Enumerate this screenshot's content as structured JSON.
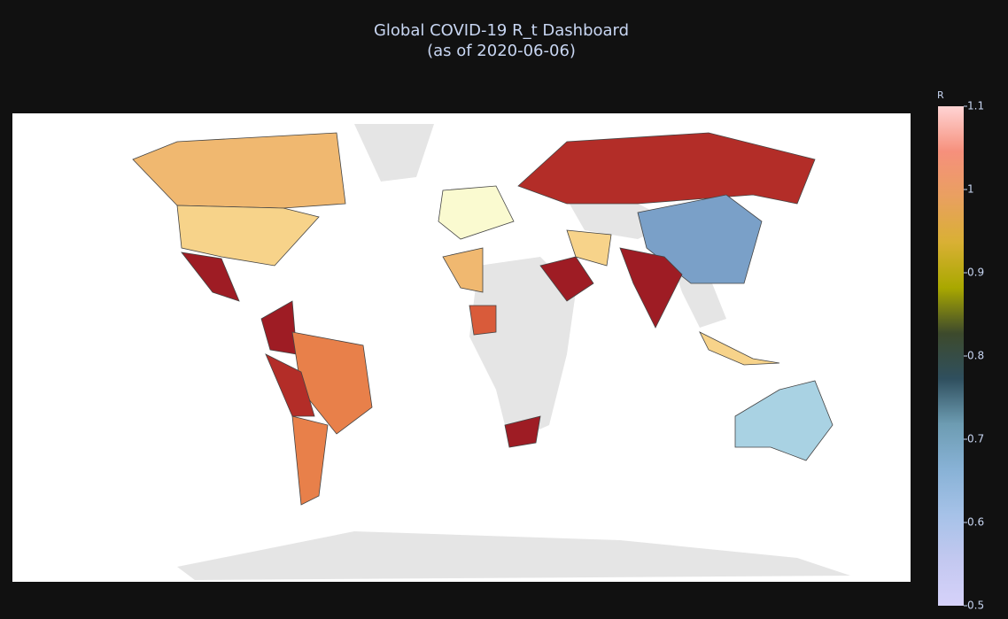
{
  "chart_data": {
    "type": "choropleth",
    "title": "Global COVID-19 R_t Dashboard",
    "subtitle": "(as of 2020-06-06)",
    "colorbar": {
      "title": "R",
      "range": [
        0.5,
        1.1
      ],
      "ticks": [
        0.5,
        0.6,
        0.7,
        0.8,
        0.9,
        1,
        1.1
      ]
    },
    "colorscale": [
      "#d6d2fa",
      "#c3c8f0",
      "#a6c2e8",
      "#88b2d6",
      "#6d9cb2",
      "#2f4f5e",
      "#3d4a2c",
      "#a9a800",
      "#d9b034",
      "#e9a060",
      "#f6907c",
      "#ffd4d4"
    ]
  }
}
